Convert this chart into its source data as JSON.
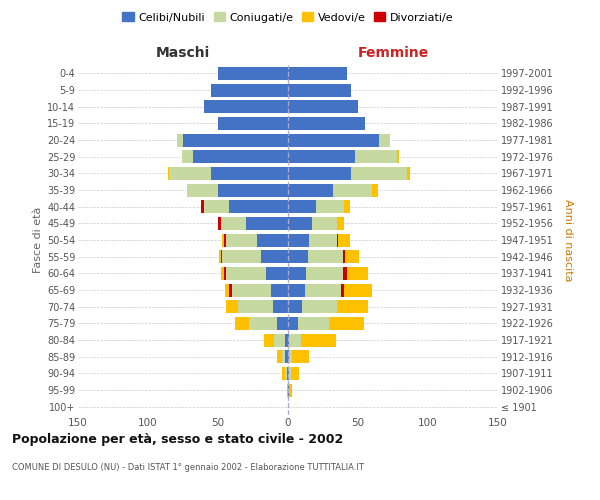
{
  "age_groups": [
    "100+",
    "95-99",
    "90-94",
    "85-89",
    "80-84",
    "75-79",
    "70-74",
    "65-69",
    "60-64",
    "55-59",
    "50-54",
    "45-49",
    "40-44",
    "35-39",
    "30-34",
    "25-29",
    "20-24",
    "15-19",
    "10-14",
    "5-9",
    "0-4"
  ],
  "birth_years": [
    "≤ 1901",
    "1902-1906",
    "1907-1911",
    "1912-1916",
    "1917-1921",
    "1922-1926",
    "1927-1931",
    "1932-1936",
    "1937-1941",
    "1942-1946",
    "1947-1951",
    "1952-1956",
    "1957-1961",
    "1962-1966",
    "1967-1971",
    "1972-1976",
    "1977-1981",
    "1982-1986",
    "1987-1991",
    "1992-1996",
    "1997-2001"
  ],
  "maschi_celibi": [
    0,
    0,
    1,
    2,
    2,
    8,
    11,
    12,
    16,
    19,
    22,
    30,
    42,
    50,
    55,
    68,
    75,
    50,
    60,
    55,
    50
  ],
  "maschi_coniugati": [
    0,
    0,
    1,
    2,
    8,
    20,
    25,
    28,
    28,
    28,
    22,
    18,
    18,
    22,
    30,
    8,
    4,
    0,
    0,
    0,
    0
  ],
  "maschi_vedovi": [
    0,
    1,
    2,
    4,
    7,
    10,
    8,
    3,
    2,
    1,
    1,
    0,
    0,
    0,
    1,
    0,
    0,
    0,
    0,
    0,
    0
  ],
  "maschi_divorziati": [
    0,
    0,
    0,
    0,
    0,
    0,
    0,
    2,
    2,
    1,
    2,
    2,
    2,
    0,
    0,
    0,
    0,
    0,
    0,
    0,
    0
  ],
  "femmine_nubili": [
    0,
    1,
    1,
    1,
    1,
    7,
    10,
    12,
    13,
    14,
    15,
    17,
    20,
    32,
    45,
    48,
    65,
    55,
    50,
    45,
    42
  ],
  "femmine_coniugate": [
    0,
    0,
    1,
    2,
    8,
    22,
    25,
    26,
    26,
    25,
    20,
    18,
    20,
    28,
    40,
    30,
    8,
    0,
    0,
    0,
    0
  ],
  "femmine_vedove": [
    0,
    2,
    6,
    12,
    25,
    25,
    22,
    20,
    15,
    10,
    8,
    5,
    4,
    4,
    2,
    1,
    0,
    0,
    0,
    0,
    0
  ],
  "femmine_divorziate": [
    0,
    0,
    0,
    0,
    0,
    0,
    0,
    2,
    3,
    2,
    1,
    0,
    0,
    0,
    0,
    0,
    0,
    0,
    0,
    0,
    0
  ],
  "color_celibi": "#4472c4",
  "color_coniugati": "#c5d9a0",
  "color_vedovi": "#ffc000",
  "color_divorziati": "#cc0000",
  "title": "Popolazione per età, sesso e stato civile - 2002",
  "subtitle": "COMUNE DI DESULO (NU) - Dati ISTAT 1° gennaio 2002 - Elaborazione TUTTITALIA.IT",
  "legend_labels": [
    "Celibi/Nubili",
    "Coniugati/e",
    "Vedovi/e",
    "Divorziati/e"
  ],
  "xlim": 150,
  "ylabel_left": "Fasce di età",
  "ylabel_right": "Anni di nascita",
  "label_maschi": "Maschi",
  "label_femmine": "Femmine"
}
